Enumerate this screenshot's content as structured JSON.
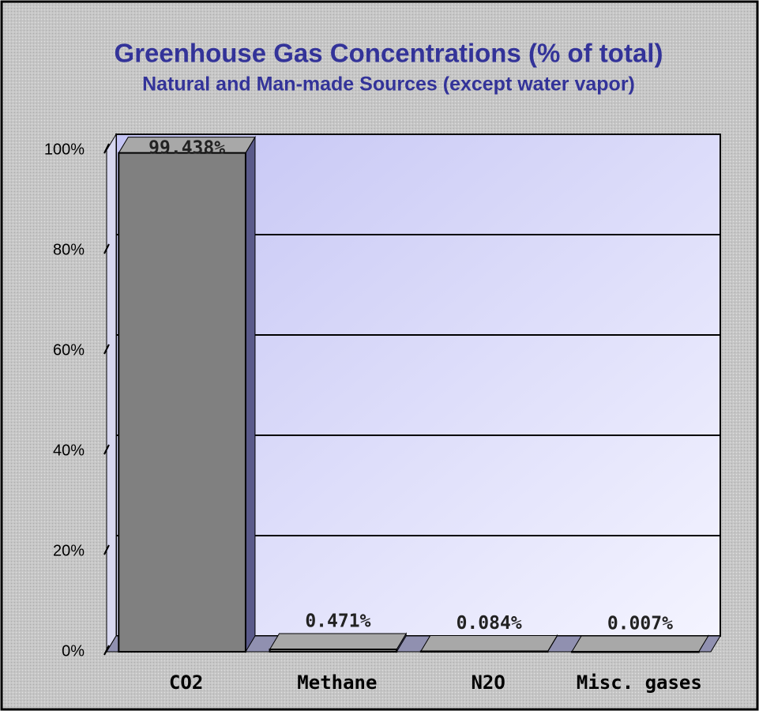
{
  "chart_data": {
    "type": "bar",
    "title": "Greenhouse Gas Concentrations (% of total)",
    "subtitle": "Natural and Man-made Sources (except water vapor)",
    "categories": [
      "CO2",
      "Methane",
      "N2O",
      "Misc. gases"
    ],
    "values": [
      99.438,
      0.471,
      0.084,
      0.007
    ],
    "value_labels": [
      "99.438%",
      "0.471%",
      "0.084%",
      "0.007%"
    ],
    "color": "#808080",
    "ylim": [
      0,
      100
    ],
    "yticks": [
      {
        "value": 0,
        "label": "0%"
      },
      {
        "value": 20,
        "label": "20%"
      },
      {
        "value": 40,
        "label": "40%"
      },
      {
        "value": 60,
        "label": "60%"
      },
      {
        "value": 80,
        "label": "80%"
      },
      {
        "value": 100,
        "label": "100%"
      }
    ],
    "grid": true
  }
}
